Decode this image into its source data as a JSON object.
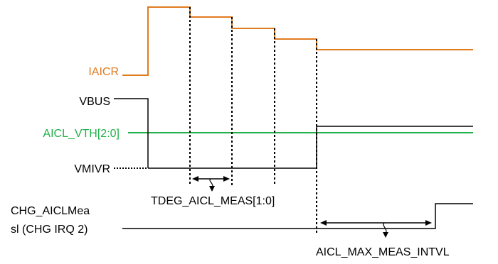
{
  "signals": {
    "iaicr": "IAICR",
    "vbus": "VBUS",
    "aicl_vth": "AICL_VTH[2:0]",
    "vmivr": "VMIVR",
    "chg_aiclmeas_line1": "CHG_AICLMea",
    "chg_aiclmeas_line2": "sl (CHG IRQ 2)"
  },
  "annotations": {
    "tdeg": "TDEG_AICL_MEAS[1:0]",
    "max_interval": "AICL_MAX_MEAS_INTVL"
  },
  "colors": {
    "iaicr": "#E07B20",
    "aicl_vth": "#22B04A",
    "default": "#000000"
  }
}
